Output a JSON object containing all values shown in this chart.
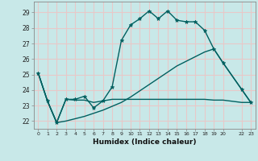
{
  "title": "",
  "xlabel": "Humidex (Indice chaleur)",
  "background_color": "#c8e8e8",
  "grid_color": "#e8c8c8",
  "line_color": "#006060",
  "line_width": 1.0,
  "marker": "*",
  "marker_size": 3.5,
  "xlim": [
    -0.5,
    23.5
  ],
  "ylim": [
    21.5,
    29.7
  ],
  "xticks": [
    0,
    1,
    2,
    3,
    4,
    5,
    6,
    7,
    8,
    9,
    10,
    11,
    12,
    13,
    14,
    15,
    16,
    17,
    18,
    19,
    20,
    22,
    23
  ],
  "xtick_labels": [
    "0",
    "1",
    "2",
    "3",
    "4",
    "5",
    "6",
    "7",
    "8",
    "9",
    "10",
    "11",
    "12",
    "13",
    "14",
    "15",
    "16",
    "17",
    "18",
    "19",
    "20",
    "22",
    "23"
  ],
  "yticks": [
    22,
    23,
    24,
    25,
    26,
    27,
    28,
    29
  ],
  "line1_x": [
    0,
    1,
    2,
    3,
    4,
    5,
    6,
    7,
    8,
    9,
    10,
    11,
    12,
    13,
    14,
    15,
    16,
    17,
    18,
    19,
    20,
    22,
    23
  ],
  "line1_y": [
    25.1,
    23.3,
    21.9,
    23.4,
    23.4,
    23.6,
    22.85,
    23.3,
    24.2,
    27.2,
    28.2,
    28.6,
    29.1,
    28.6,
    29.1,
    28.5,
    28.4,
    28.4,
    27.85,
    26.65,
    25.75,
    24.05,
    23.2
  ],
  "line2_x": [
    0,
    1,
    2,
    3,
    4,
    5,
    6,
    7,
    8,
    9,
    10,
    11,
    12,
    13,
    14,
    15,
    16,
    17,
    18,
    19,
    20,
    22,
    23
  ],
  "line2_y": [
    25.1,
    23.3,
    21.9,
    23.4,
    23.35,
    23.35,
    23.2,
    23.3,
    23.4,
    23.4,
    23.4,
    23.4,
    23.4,
    23.4,
    23.4,
    23.4,
    23.4,
    23.4,
    23.4,
    23.35,
    23.35,
    23.2,
    23.2
  ],
  "line3_x": [
    0,
    1,
    2,
    3,
    4,
    5,
    6,
    7,
    8,
    9,
    10,
    11,
    12,
    13,
    14,
    15,
    16,
    17,
    18,
    19,
    20,
    22,
    23
  ],
  "line3_y": [
    25.1,
    23.3,
    21.9,
    22.0,
    22.15,
    22.3,
    22.5,
    22.7,
    22.95,
    23.2,
    23.55,
    23.95,
    24.35,
    24.75,
    25.15,
    25.55,
    25.85,
    26.15,
    26.45,
    26.65,
    25.75,
    24.05,
    23.2
  ]
}
